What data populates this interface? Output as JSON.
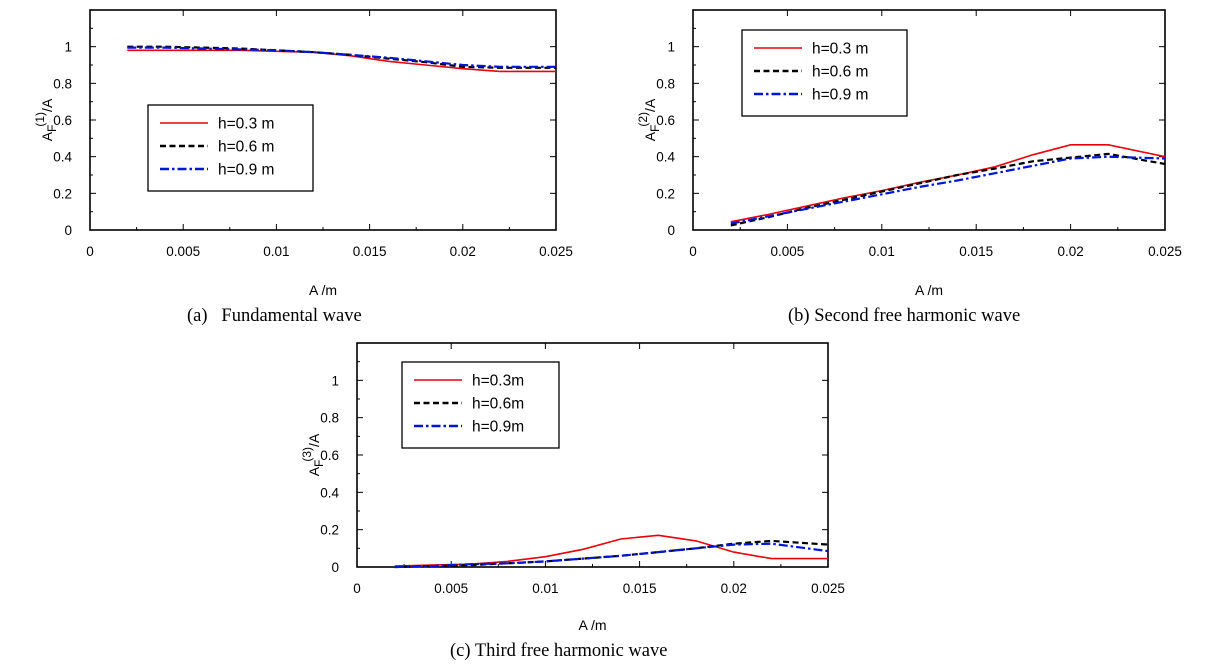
{
  "chart_data": [
    {
      "type": "line",
      "caption": "(a)   Fundamental wave",
      "xlabel": "A /m",
      "ylabel": {
        "base": "A",
        "sub": "F",
        "sup": "(1)",
        "suffix": "/A"
      },
      "xlim": [
        0,
        0.025
      ],
      "ylim": [
        0,
        1.2
      ],
      "xticks": [
        "0",
        "0.005",
        "0.01",
        "0.015",
        "0.02",
        "0.025"
      ],
      "yticks": [
        "0",
        "0.2",
        "0.4",
        "0.6",
        "0.8",
        "1"
      ],
      "legend_position": "center-left",
      "series": [
        {
          "name": "h=0.3 m",
          "color": "#e8000b",
          "style": "solid",
          "x": [
            0.002,
            0.004,
            0.006,
            0.008,
            0.01,
            0.012,
            0.014,
            0.016,
            0.018,
            0.02,
            0.022,
            0.025
          ],
          "y": [
            0.98,
            0.98,
            0.98,
            0.98,
            0.975,
            0.97,
            0.95,
            0.92,
            0.9,
            0.88,
            0.865,
            0.865
          ]
        },
        {
          "name": "h=0.6 m",
          "color": "#000000",
          "style": "dash",
          "x": [
            0.002,
            0.004,
            0.006,
            0.008,
            0.01,
            0.012,
            0.014,
            0.016,
            0.018,
            0.02,
            0.022,
            0.025
          ],
          "y": [
            1.0,
            1.0,
            0.995,
            0.99,
            0.98,
            0.97,
            0.955,
            0.935,
            0.915,
            0.89,
            0.885,
            0.885
          ]
        },
        {
          "name": "h=0.9 m",
          "color": "#0015d6",
          "style": "dashdot",
          "x": [
            0.002,
            0.004,
            0.006,
            0.008,
            0.01,
            0.012,
            0.014,
            0.016,
            0.018,
            0.02,
            0.022,
            0.025
          ],
          "y": [
            0.995,
            0.995,
            0.99,
            0.985,
            0.98,
            0.97,
            0.955,
            0.94,
            0.92,
            0.9,
            0.89,
            0.89
          ]
        }
      ]
    },
    {
      "type": "line",
      "caption": "(b) Second free harmonic wave",
      "xlabel": "A /m",
      "ylabel": {
        "base": "A",
        "sub": "F",
        "sup": "(2)",
        "suffix": "/A"
      },
      "xlim": [
        0,
        0.025
      ],
      "ylim": [
        0,
        1.2
      ],
      "xticks": [
        "0",
        "0.005",
        "0.01",
        "0.015",
        "0.02",
        "0.025"
      ],
      "yticks": [
        "0",
        "0.2",
        "0.4",
        "0.6",
        "0.8",
        "1"
      ],
      "legend_position": "top-left",
      "series": [
        {
          "name": "h=0.3 m",
          "color": "#e8000b",
          "style": "solid",
          "x": [
            0.002,
            0.004,
            0.006,
            0.008,
            0.01,
            0.012,
            0.014,
            0.016,
            0.018,
            0.02,
            0.022,
            0.025
          ],
          "y": [
            0.045,
            0.085,
            0.13,
            0.175,
            0.215,
            0.26,
            0.3,
            0.345,
            0.41,
            0.465,
            0.465,
            0.4
          ]
        },
        {
          "name": "h=0.6 m",
          "color": "#000000",
          "style": "dash",
          "x": [
            0.002,
            0.004,
            0.006,
            0.008,
            0.01,
            0.012,
            0.014,
            0.016,
            0.018,
            0.02,
            0.022,
            0.025
          ],
          "y": [
            0.025,
            0.07,
            0.12,
            0.165,
            0.21,
            0.255,
            0.3,
            0.335,
            0.375,
            0.395,
            0.415,
            0.36
          ]
        },
        {
          "name": "h=0.9 m",
          "color": "#0015d6",
          "style": "dashdot",
          "x": [
            0.002,
            0.004,
            0.006,
            0.008,
            0.01,
            0.012,
            0.014,
            0.016,
            0.018,
            0.02,
            0.022,
            0.025
          ],
          "y": [
            0.035,
            0.075,
            0.115,
            0.155,
            0.195,
            0.235,
            0.27,
            0.31,
            0.35,
            0.39,
            0.4,
            0.39
          ]
        }
      ]
    },
    {
      "type": "line",
      "caption": "(c) Third free harmonic wave",
      "xlabel": "A /m",
      "ylabel": {
        "base": "A",
        "sub": "F",
        "sup": "(3)",
        "suffix": "/A"
      },
      "xlim": [
        0,
        0.025
      ],
      "ylim": [
        0,
        1.2
      ],
      "xticks": [
        "0",
        "0.005",
        "0.01",
        "0.015",
        "0.02",
        "0.025"
      ],
      "yticks": [
        "0",
        "0.2",
        "0.4",
        "0.6",
        "0.8",
        "1"
      ],
      "legend_position": "top-left",
      "series": [
        {
          "name": "h=0.3m",
          "color": "#e8000b",
          "style": "solid",
          "x": [
            0.002,
            0.004,
            0.006,
            0.008,
            0.01,
            0.012,
            0.014,
            0.016,
            0.018,
            0.02,
            0.022,
            0.025
          ],
          "y": [
            0.005,
            0.01,
            0.015,
            0.03,
            0.055,
            0.095,
            0.15,
            0.17,
            0.14,
            0.08,
            0.045,
            0.045
          ]
        },
        {
          "name": "h=0.6m",
          "color": "#000000",
          "style": "dash",
          "x": [
            0.002,
            0.004,
            0.006,
            0.008,
            0.01,
            0.012,
            0.014,
            0.016,
            0.018,
            0.02,
            0.022,
            0.025
          ],
          "y": [
            0.0,
            0.005,
            0.01,
            0.02,
            0.03,
            0.045,
            0.06,
            0.08,
            0.1,
            0.125,
            0.14,
            0.12
          ]
        },
        {
          "name": "h=0.9m",
          "color": "#0015d6",
          "style": "dashdot",
          "x": [
            0.002,
            0.004,
            0.006,
            0.008,
            0.01,
            0.012,
            0.014,
            0.016,
            0.018,
            0.02,
            0.022,
            0.025
          ],
          "y": [
            0.0,
            0.005,
            0.015,
            0.02,
            0.03,
            0.045,
            0.06,
            0.08,
            0.1,
            0.12,
            0.125,
            0.085
          ]
        }
      ]
    }
  ]
}
